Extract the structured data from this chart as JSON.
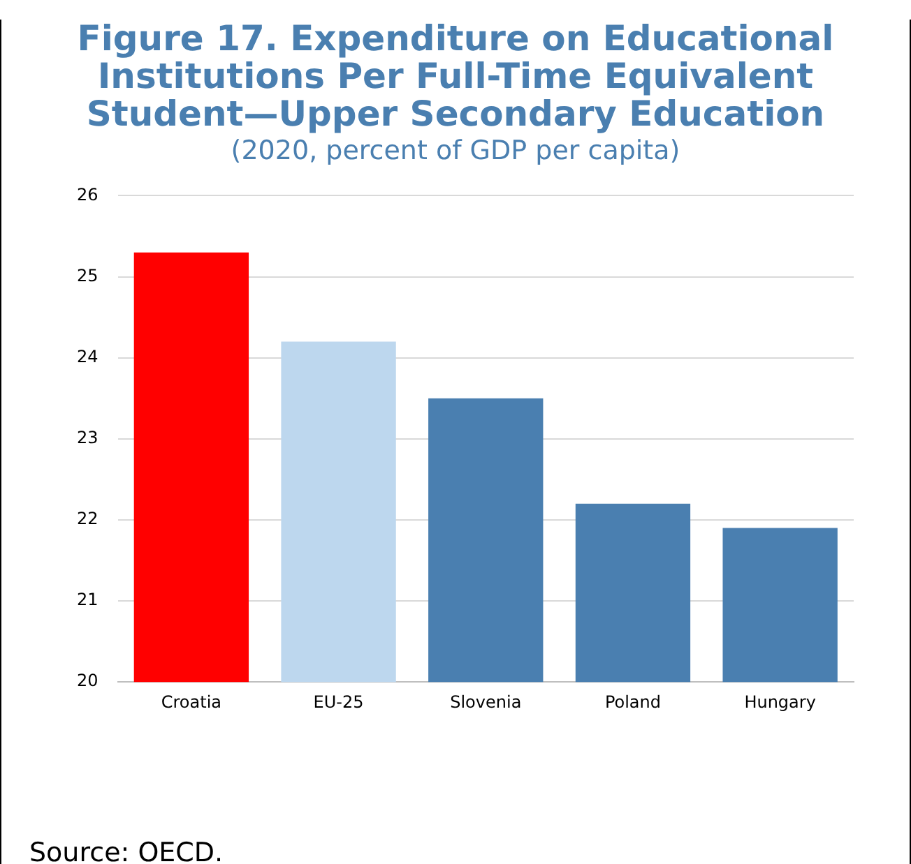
{
  "chart_data": {
    "type": "bar",
    "title": "Figure 17. Expenditure on Educational Institutions Per Full-Time Equivalent Student—Upper Secondary Education",
    "subtitle": "(2020, percent of GDP per capita)",
    "categories": [
      "Croatia",
      "EU-25",
      "Slovenia",
      "Poland",
      "Hungary"
    ],
    "values": [
      25.3,
      24.2,
      23.5,
      22.2,
      21.9
    ],
    "colors": [
      "#ff0000",
      "#bdd7ee",
      "#4a7fb0",
      "#4a7fb0",
      "#4a7fb0"
    ],
    "ylim": [
      20,
      26
    ],
    "yticks": [
      20,
      21,
      22,
      23,
      24,
      25,
      26
    ],
    "grid": "y",
    "legend": false,
    "annotations": [
      "Source: OECD."
    ]
  }
}
